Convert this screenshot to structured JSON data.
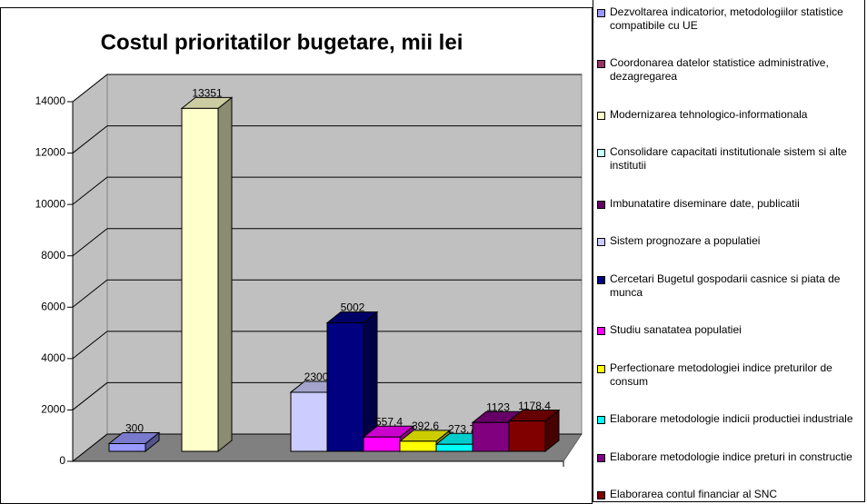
{
  "chart_data": {
    "type": "bar3d",
    "title": "Costul prioritatilor bugetare, mii lei",
    "ylim": [
      0,
      14000
    ],
    "yticks": [
      0,
      2000,
      4000,
      6000,
      8000,
      10000,
      12000,
      14000
    ],
    "grid": true,
    "series": [
      {
        "name": "Dezvoltarea indicatorior, metodologiilor statistice compatibile cu UE",
        "color": "#9999ff",
        "values": [
          300
        ]
      },
      {
        "name": "Coordonarea datelor statistice administrative, dezagregarea",
        "color": "#993366",
        "values": [
          null
        ]
      },
      {
        "name": "Modernizarea tehnologico-informationala",
        "color": "#ffffcc",
        "values": [
          13351
        ]
      },
      {
        "name": "Consolidare capacitati institutionale sistem si alte institutii",
        "color": "#ccffff",
        "values": [
          null
        ]
      },
      {
        "name": "Imbunatatire diseminare date, publicatii",
        "color": "#660066",
        "values": [
          null
        ]
      },
      {
        "name": "Sistem prognozare a populatiei",
        "color": "#ccccff",
        "values": [
          2300
        ]
      },
      {
        "name": "Cercetari Bugetul gospodarii casnice si piata de munca",
        "color": "#000080",
        "values": [
          5002
        ]
      },
      {
        "name": "Studiu sanatatea populatiei",
        "color": "#ff00ff",
        "values": [
          557.4
        ]
      },
      {
        "name": "Perfectionare metodologiei indice preturilor de consum",
        "color": "#ffff00",
        "values": [
          392.6
        ]
      },
      {
        "name": "Elaborare metodologie indicii productiei industriale",
        "color": "#00ffff",
        "values": [
          273.7
        ]
      },
      {
        "name": "Elaborare metodologie indice preturi in constructie",
        "color": "#800080",
        "values": [
          1123
        ]
      },
      {
        "name": "Elaborarea contul financiar al SNC",
        "color": "#800000",
        "values": [
          1178.4
        ]
      }
    ]
  }
}
